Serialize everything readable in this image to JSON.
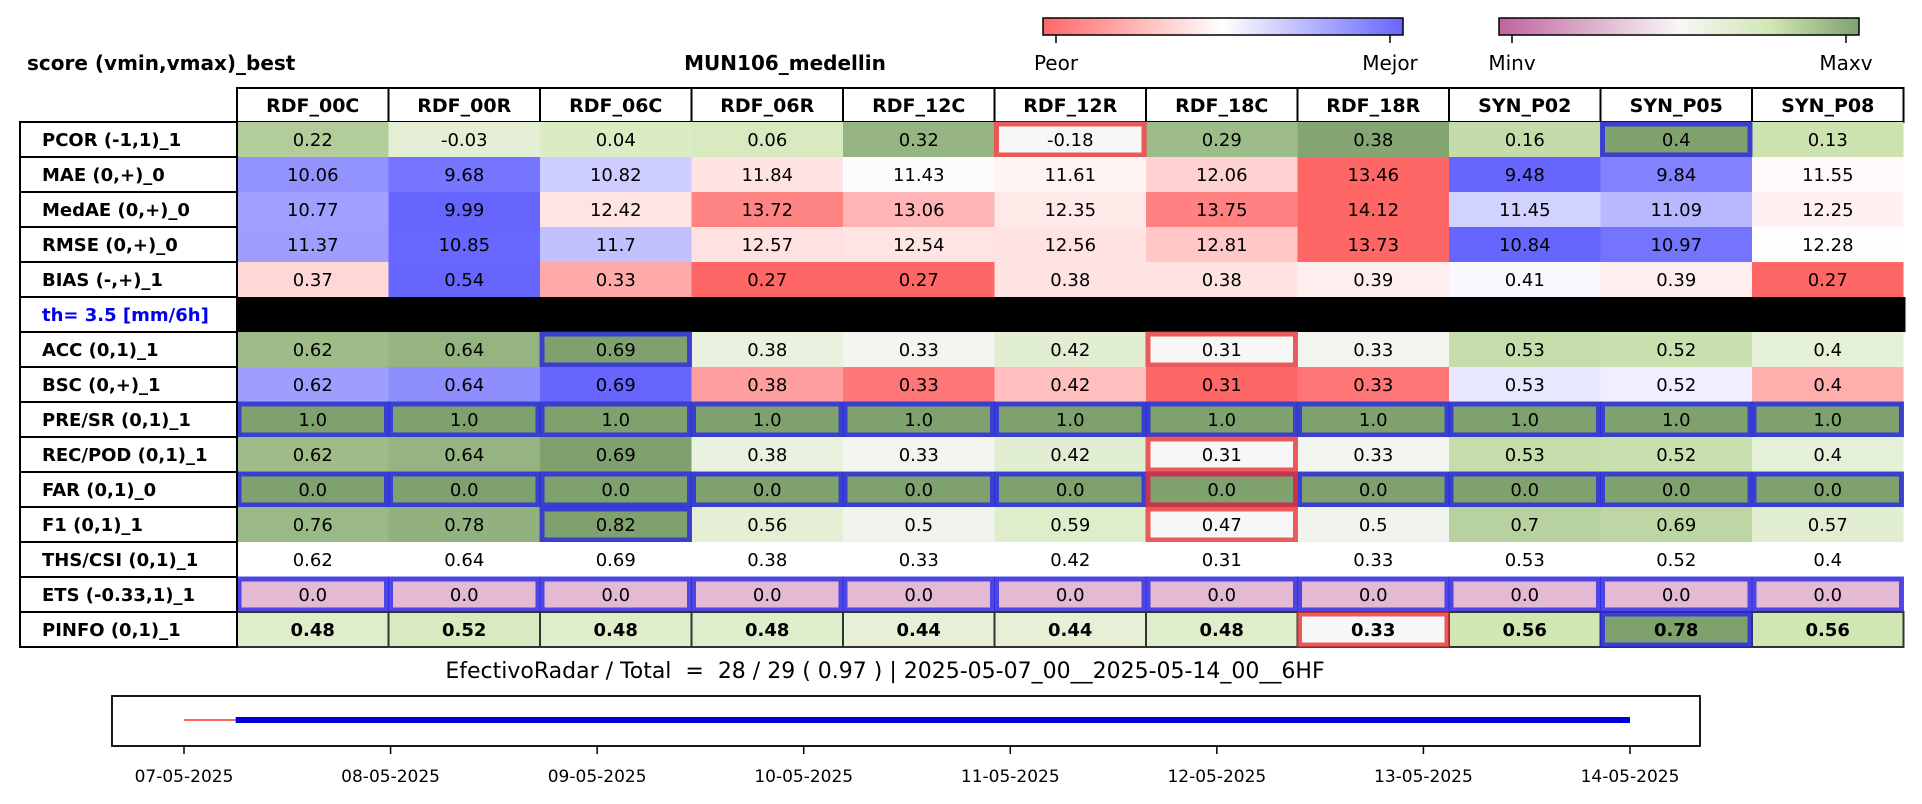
{
  "header": {
    "left_title": "score (vmin,vmax)_best",
    "center_title": "MUN106_medellin",
    "cbar1_low": "Peor",
    "cbar1_high": "Mejor",
    "cbar2_low": "Minv",
    "cbar2_high": "Maxv"
  },
  "colors": {
    "bad": "#ff6666",
    "good": "#6666ff",
    "rank_low": "#c0649e",
    "rank_high": "#7fa16e",
    "highlight_best": "#2828e6",
    "highlight_worst": "#e63232",
    "sep_row": "#000000",
    "th_text": "#0000ee",
    "timeline_missing": "#ff6666",
    "timeline_valid": "#0000dd"
  },
  "chart_data": {
    "type": "table",
    "columns": [
      "RDF_00C",
      "RDF_00R",
      "RDF_06C",
      "RDF_06R",
      "RDF_12C",
      "RDF_12R",
      "RDF_18C",
      "RDF_18R",
      "SYN_P02",
      "SYN_P05",
      "SYN_P08"
    ],
    "rows": [
      {
        "label": "PCOR (-1,1)_1",
        "values": [
          "0.22",
          "-0.03",
          "0.04",
          "0.06",
          "0.32",
          "-0.18",
          "0.29",
          "0.38",
          "0.16",
          "0.4",
          "0.13"
        ],
        "scheme": "rank",
        "best": [
          9
        ],
        "worst": [
          5
        ]
      },
      {
        "label": "MAE (0,+)_0",
        "values": [
          "10.06",
          "9.68",
          "10.82",
          "11.84",
          "11.43",
          "11.61",
          "12.06",
          "13.46",
          "9.48",
          "9.84",
          "11.55"
        ],
        "scheme": "bw",
        "best": [],
        "worst": []
      },
      {
        "label": "MedAE (0,+)_0",
        "values": [
          "10.77",
          "9.99",
          "12.42",
          "13.72",
          "13.06",
          "12.35",
          "13.75",
          "14.12",
          "11.45",
          "11.09",
          "12.25"
        ],
        "scheme": "bw",
        "best": [],
        "worst": []
      },
      {
        "label": "RMSE (0,+)_0",
        "values": [
          "11.37",
          "10.85",
          "11.7",
          "12.57",
          "12.54",
          "12.56",
          "12.81",
          "13.73",
          "10.84",
          "10.97",
          "12.28"
        ],
        "scheme": "bw",
        "best": [],
        "worst": []
      },
      {
        "label": "BIAS (-,+)_1",
        "values": [
          "0.37",
          "0.54",
          "0.33",
          "0.27",
          "0.27",
          "0.38",
          "0.38",
          "0.39",
          "0.41",
          "0.39",
          "0.27"
        ],
        "scheme": "bias",
        "best": [],
        "worst": []
      },
      {
        "label": "th= 3.5 [mm/6h]",
        "separator": true
      },
      {
        "label": "ACC (0,1)_1",
        "values": [
          "0.62",
          "0.64",
          "0.69",
          "0.38",
          "0.33",
          "0.42",
          "0.31",
          "0.33",
          "0.53",
          "0.52",
          "0.4"
        ],
        "scheme": "rank",
        "best": [
          2
        ],
        "worst": [
          6
        ]
      },
      {
        "label": "BSC (0,+)_1",
        "values": [
          "0.62",
          "0.64",
          "0.69",
          "0.38",
          "0.33",
          "0.42",
          "0.31",
          "0.33",
          "0.53",
          "0.52",
          "0.4"
        ],
        "scheme": "bw",
        "best": [],
        "worst": []
      },
      {
        "label": "PRE/SR (0,1)_1",
        "values": [
          "1.0",
          "1.0",
          "1.0",
          "1.0",
          "1.0",
          "1.0",
          "1.0",
          "1.0",
          "1.0",
          "1.0",
          "1.0"
        ],
        "scheme": "rank",
        "best": [
          0,
          1,
          2,
          3,
          4,
          5,
          6,
          7,
          8,
          9,
          10
        ],
        "worst": []
      },
      {
        "label": "REC/POD (0,1)_1",
        "values": [
          "0.62",
          "0.64",
          "0.69",
          "0.38",
          "0.33",
          "0.42",
          "0.31",
          "0.33",
          "0.53",
          "0.52",
          "0.4"
        ],
        "scheme": "rank",
        "best": [],
        "worst": [
          6
        ]
      },
      {
        "label": "FAR (0,1)_0",
        "values": [
          "0.0",
          "0.0",
          "0.0",
          "0.0",
          "0.0",
          "0.0",
          "0.0",
          "0.0",
          "0.0",
          "0.0",
          "0.0"
        ],
        "scheme": "rank_full",
        "best": [
          0,
          1,
          2,
          3,
          4,
          5,
          6,
          7,
          8,
          9,
          10
        ],
        "worst": [
          6
        ]
      },
      {
        "label": "F1 (0,1)_1",
        "values": [
          "0.76",
          "0.78",
          "0.82",
          "0.56",
          "0.5",
          "0.59",
          "0.47",
          "0.5",
          "0.7",
          "0.69",
          "0.57"
        ],
        "scheme": "rank",
        "best": [
          2
        ],
        "worst": [
          6
        ]
      },
      {
        "label": "THS/CSI (0,1)_1",
        "values": [
          "0.62",
          "0.64",
          "0.69",
          "0.38",
          "0.33",
          "0.42",
          "0.31",
          "0.33",
          "0.53",
          "0.52",
          "0.4"
        ],
        "scheme": "none",
        "best": [],
        "worst": []
      },
      {
        "label": "ETS (-0.33,1)_1",
        "values": [
          "0.0",
          "0.0",
          "0.0",
          "0.0",
          "0.0",
          "0.0",
          "0.0",
          "0.0",
          "0.0",
          "0.0",
          "0.0"
        ],
        "scheme": "rank_low_full",
        "best": [
          0,
          1,
          2,
          3,
          4,
          5,
          6,
          7,
          8,
          9,
          10
        ],
        "worst": []
      },
      {
        "label": "PINFO (0,1)_1",
        "values": [
          "0.48",
          "0.52",
          "0.48",
          "0.48",
          "0.44",
          "0.44",
          "0.48",
          "0.33",
          "0.56",
          "0.78",
          "0.56"
        ],
        "scheme": "rank",
        "best": [
          9
        ],
        "worst": [
          7
        ],
        "bold": true
      }
    ],
    "timeline": {
      "x_ticks": [
        "07-05-2025",
        "08-05-2025",
        "09-05-2025",
        "10-05-2025",
        "11-05-2025",
        "12-05-2025",
        "13-05-2025",
        "14-05-2025"
      ],
      "missing": [
        "2025-05-07 00:00",
        "2025-05-07 06:00"
      ],
      "valid": [
        "2025-05-07 06:00",
        "2025-05-14 00:00"
      ]
    }
  },
  "summary": "EfectivoRadar / Total  =  28 / 29 ( 0.97 ) | 2025-05-07_00__2025-05-14_00__6HF"
}
